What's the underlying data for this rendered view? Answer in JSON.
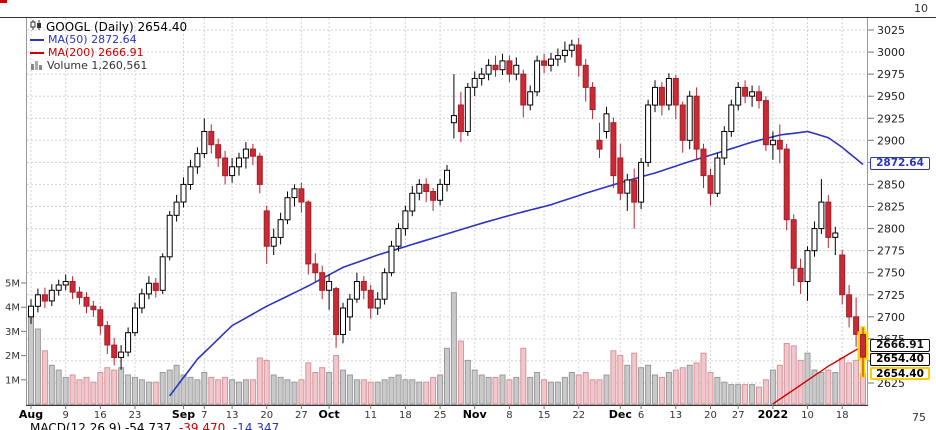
{
  "window": {
    "top_right_cutoff_label": "10",
    "bottom_right_cutoff_label": "75"
  },
  "legend": {
    "title": "GOOGL (Daily) 2654.40",
    "ma50_label": "MA(50) 2872.64",
    "ma200_label": "MA(200) 2666.91",
    "volume_label": "Volume 1,260,561"
  },
  "macd_legend": {
    "label": "MACD(12,26,9)",
    "v1": "-54.737,",
    "v2": "-39.470,",
    "v3": "-14.347"
  },
  "colors": {
    "up_candle_fill": "#ffffff",
    "up_candle_stroke": "#000000",
    "down_candle_fill": "#cc2936",
    "ma50_line": "#2b35c0",
    "ma200_line": "#cc0000",
    "volume_up": "#c9c9c9",
    "volume_down": "#f3c6cb",
    "selection_highlight": "#ffd400",
    "grid": "#d3d3d3"
  },
  "price_axis": {
    "ticks": [
      3025,
      3000,
      2975,
      2950,
      2925,
      2900,
      2875,
      2850,
      2825,
      2800,
      2775,
      2750,
      2725,
      2700,
      2675,
      2650,
      2625
    ]
  },
  "volume_axis": {
    "ticks": [
      {
        "label": "5M",
        "v": 5
      },
      {
        "label": "4M",
        "v": 4
      },
      {
        "label": "3M",
        "v": 3
      },
      {
        "label": "2M",
        "v": 2
      },
      {
        "label": "1M",
        "v": 1
      }
    ]
  },
  "x_axis": {
    "labels": [
      {
        "t": "Aug",
        "i": 0,
        "b": true
      },
      {
        "t": "9",
        "i": 5
      },
      {
        "t": "16",
        "i": 10
      },
      {
        "t": "23",
        "i": 15
      },
      {
        "t": "Sep",
        "i": 22,
        "b": true
      },
      {
        "t": "7",
        "i": 25
      },
      {
        "t": "13",
        "i": 29
      },
      {
        "t": "20",
        "i": 34
      },
      {
        "t": "27",
        "i": 39
      },
      {
        "t": "Oct",
        "i": 43,
        "b": true
      },
      {
        "t": "11",
        "i": 49
      },
      {
        "t": "18",
        "i": 54
      },
      {
        "t": "25",
        "i": 59
      },
      {
        "t": "Nov",
        "i": 64,
        "b": true
      },
      {
        "t": "8",
        "i": 69
      },
      {
        "t": "15",
        "i": 74
      },
      {
        "t": "22",
        "i": 79
      },
      {
        "t": "Dec",
        "i": 85,
        "b": true
      },
      {
        "t": "6",
        "i": 88
      },
      {
        "t": "13",
        "i": 93
      },
      {
        "t": "20",
        "i": 98
      },
      {
        "t": "27",
        "i": 102
      },
      {
        "t": "2022",
        "i": 107,
        "b": true
      },
      {
        "t": "10",
        "i": 112
      },
      {
        "t": "18",
        "i": 117
      }
    ]
  },
  "price_labels": [
    {
      "id": "ma50",
      "text": "2872.64",
      "value": 2872.64,
      "color": "#2b35c0"
    },
    {
      "id": "ma200",
      "text": "2666.91",
      "value": 2666.91,
      "color": "#111111"
    },
    {
      "id": "last",
      "text": "2654.40",
      "value": 2654.4,
      "color": "#000000",
      "bold": true
    },
    {
      "id": "selected",
      "text": "2654.40",
      "value": 2641,
      "color": "#000000",
      "bold": true,
      "border": "#ffcc00"
    }
  ],
  "chart_data": {
    "type": "candlestick",
    "title": "GOOGL (Daily)",
    "last_close": 2654.4,
    "ma50_value": 2872.64,
    "ma200_value": 2666.91,
    "last_volume": "1,260,561",
    "ylim": [
      2625,
      3025
    ],
    "volume_unit": "millions",
    "x_range": "Aug 2021 - Jan 2022",
    "candles_format": [
      "open",
      "high",
      "low",
      "close",
      "volume_millions"
    ],
    "candles": [
      [
        2700,
        2720,
        2692,
        2712,
        3.8
      ],
      [
        2712,
        2732,
        2705,
        2725,
        3.1
      ],
      [
        2725,
        2733,
        2710,
        2718,
        2.2
      ],
      [
        2718,
        2737,
        2712,
        2730,
        1.6
      ],
      [
        2730,
        2742,
        2724,
        2736,
        1.4
      ],
      [
        2736,
        2748,
        2730,
        2740,
        1.1
      ],
      [
        2740,
        2746,
        2720,
        2728,
        1.2
      ],
      [
        2728,
        2734,
        2714,
        2722,
        1.0
      ],
      [
        2722,
        2728,
        2704,
        2712,
        1.1
      ],
      [
        2712,
        2718,
        2700,
        2708,
        0.9
      ],
      [
        2708,
        2712,
        2680,
        2690,
        1.3
      ],
      [
        2690,
        2695,
        2658,
        2668,
        1.5
      ],
      [
        2668,
        2676,
        2645,
        2654,
        1.4
      ],
      [
        2654,
        2668,
        2640,
        2660,
        1.5
      ],
      [
        2660,
        2688,
        2655,
        2682,
        1.2
      ],
      [
        2682,
        2716,
        2678,
        2710,
        1.1
      ],
      [
        2710,
        2732,
        2704,
        2726,
        1.0
      ],
      [
        2726,
        2746,
        2720,
        2738,
        0.9
      ],
      [
        2738,
        2744,
        2722,
        2730,
        0.9
      ],
      [
        2730,
        2772,
        2726,
        2768,
        1.3
      ],
      [
        2768,
        2820,
        2764,
        2815,
        1.4
      ],
      [
        2815,
        2838,
        2808,
        2830,
        1.6
      ],
      [
        2830,
        2858,
        2824,
        2850,
        1.2
      ],
      [
        2850,
        2878,
        2844,
        2870,
        1.1
      ],
      [
        2870,
        2892,
        2862,
        2885,
        1.0
      ],
      [
        2885,
        2925,
        2880,
        2910,
        1.3
      ],
      [
        2910,
        2918,
        2885,
        2895,
        1.1
      ],
      [
        2895,
        2902,
        2870,
        2880,
        1.0
      ],
      [
        2880,
        2888,
        2850,
        2860,
        1.1
      ],
      [
        2860,
        2880,
        2852,
        2870,
        1.0
      ],
      [
        2870,
        2886,
        2860,
        2880,
        0.9
      ],
      [
        2880,
        2898,
        2868,
        2890,
        1.0
      ],
      [
        2890,
        2896,
        2872,
        2882,
        1.0
      ],
      [
        2882,
        2886,
        2840,
        2850,
        1.9
      ],
      [
        2820,
        2826,
        2760,
        2780,
        1.8
      ],
      [
        2780,
        2800,
        2770,
        2790,
        1.2
      ],
      [
        2790,
        2818,
        2782,
        2810,
        1.1
      ],
      [
        2810,
        2842,
        2805,
        2835,
        1.0
      ],
      [
        2835,
        2850,
        2825,
        2845,
        0.9
      ],
      [
        2845,
        2852,
        2818,
        2830,
        1.0
      ],
      [
        2830,
        2832,
        2748,
        2760,
        1.7
      ],
      [
        2760,
        2772,
        2740,
        2750,
        1.3
      ],
      [
        2750,
        2758,
        2720,
        2730,
        1.5
      ],
      [
        2730,
        2748,
        2708,
        2740,
        1.3
      ],
      [
        2732,
        2734,
        2665,
        2680,
        2.0
      ],
      [
        2680,
        2716,
        2670,
        2710,
        1.4
      ],
      [
        2700,
        2726,
        2684,
        2720,
        1.2
      ],
      [
        2720,
        2750,
        2716,
        2740,
        1.0
      ],
      [
        2740,
        2746,
        2720,
        2730,
        1.0
      ],
      [
        2730,
        2736,
        2698,
        2710,
        0.9
      ],
      [
        2710,
        2728,
        2702,
        2720,
        0.9
      ],
      [
        2720,
        2755,
        2714,
        2750,
        1.0
      ],
      [
        2750,
        2786,
        2746,
        2780,
        1.1
      ],
      [
        2780,
        2806,
        2774,
        2800,
        1.2
      ],
      [
        2800,
        2826,
        2792,
        2820,
        1.0
      ],
      [
        2820,
        2848,
        2814,
        2840,
        1.0
      ],
      [
        2840,
        2856,
        2832,
        2850,
        0.9
      ],
      [
        2850,
        2857,
        2830,
        2842,
        0.9
      ],
      [
        2842,
        2846,
        2820,
        2832,
        1.1
      ],
      [
        2832,
        2856,
        2826,
        2850,
        1.2
      ],
      [
        2850,
        2872,
        2842,
        2866,
        2.3
      ],
      [
        2920,
        2975,
        2902,
        2928,
        4.6
      ],
      [
        2940,
        2955,
        2898,
        2910,
        2.6
      ],
      [
        2910,
        2965,
        2905,
        2960,
        1.8
      ],
      [
        2960,
        2978,
        2950,
        2970,
        1.4
      ],
      [
        2970,
        2982,
        2962,
        2975,
        1.2
      ],
      [
        2975,
        2992,
        2968,
        2985,
        1.1
      ],
      [
        2985,
        2996,
        2972,
        2980,
        1.1
      ],
      [
        2980,
        2998,
        2974,
        2990,
        1.2
      ],
      [
        2990,
        2996,
        2966,
        2975,
        1.0
      ],
      [
        2975,
        2994,
        2968,
        2985,
        1.1
      ],
      [
        2975,
        2980,
        2926,
        2940,
        2.3
      ],
      [
        2940,
        2962,
        2934,
        2955,
        1.1
      ],
      [
        2955,
        2996,
        2950,
        2990,
        1.3
      ],
      [
        2990,
        2998,
        2976,
        2985,
        1.0
      ],
      [
        2985,
        2999,
        2978,
        2992,
        0.9
      ],
      [
        2992,
        3004,
        2984,
        2996,
        0.9
      ],
      [
        2996,
        3012,
        2988,
        3002,
        1.1
      ],
      [
        3002,
        3014,
        2994,
        3008,
        1.3
      ],
      [
        3008,
        3016,
        2972,
        2985,
        1.2
      ],
      [
        2985,
        2992,
        2944,
        2960,
        1.3
      ],
      [
        2960,
        2966,
        2924,
        2935,
        1.0
      ],
      [
        2900,
        2920,
        2880,
        2890,
        1.0
      ],
      [
        2910,
        2938,
        2902,
        2930,
        1.2
      ],
      [
        2920,
        2926,
        2846,
        2860,
        2.2
      ],
      [
        2880,
        2896,
        2832,
        2840,
        2.0
      ],
      [
        2840,
        2862,
        2820,
        2855,
        1.6
      ],
      [
        2855,
        2868,
        2800,
        2830,
        2.1
      ],
      [
        2830,
        2880,
        2822,
        2875,
        1.5
      ],
      [
        2875,
        2946,
        2870,
        2940,
        1.6
      ],
      [
        2940,
        2968,
        2932,
        2960,
        1.2
      ],
      [
        2960,
        2966,
        2928,
        2940,
        1.1
      ],
      [
        2940,
        2976,
        2934,
        2970,
        1.3
      ],
      [
        2970,
        2974,
        2924,
        2940,
        1.4
      ],
      [
        2940,
        2944,
        2886,
        2900,
        1.5
      ],
      [
        2900,
        2956,
        2890,
        2950,
        1.6
      ],
      [
        2950,
        2960,
        2878,
        2890,
        1.7
      ],
      [
        2890,
        2896,
        2846,
        2860,
        2.1
      ],
      [
        2860,
        2868,
        2826,
        2840,
        1.3
      ],
      [
        2840,
        2886,
        2836,
        2880,
        1.1
      ],
      [
        2880,
        2916,
        2872,
        2910,
        0.9
      ],
      [
        2910,
        2946,
        2904,
        2940,
        0.8
      ],
      [
        2940,
        2966,
        2934,
        2960,
        0.8
      ],
      [
        2960,
        2968,
        2942,
        2950,
        0.8
      ],
      [
        2950,
        2962,
        2938,
        2955,
        0.8
      ],
      [
        2955,
        2962,
        2936,
        2945,
        0.7
      ],
      [
        2945,
        2950,
        2888,
        2895,
        1.0
      ],
      [
        2895,
        2910,
        2878,
        2900,
        1.4
      ],
      [
        2900,
        2918,
        2874,
        2890,
        1.6
      ],
      [
        2890,
        2896,
        2798,
        2810,
        2.5
      ],
      [
        2810,
        2816,
        2735,
        2755,
        2.4
      ],
      [
        2755,
        2766,
        2726,
        2740,
        1.8
      ],
      [
        2740,
        2780,
        2718,
        2775,
        2.1
      ],
      [
        2775,
        2808,
        2768,
        2800,
        1.4
      ],
      [
        2800,
        2856,
        2794,
        2830,
        1.3
      ],
      [
        2830,
        2838,
        2778,
        2790,
        1.4
      ],
      [
        2790,
        2802,
        2770,
        2795,
        1.3
      ],
      [
        2770,
        2776,
        2714,
        2725,
        1.9
      ],
      [
        2725,
        2736,
        2688,
        2700,
        1.7
      ],
      [
        2700,
        2722,
        2666,
        2680,
        1.8
      ],
      [
        2680,
        2688,
        2632,
        2654.4,
        1.26
      ]
    ],
    "ma50_anchors": [
      [
        19,
        2600
      ],
      [
        24,
        2652
      ],
      [
        29,
        2690
      ],
      [
        34,
        2712
      ],
      [
        40,
        2735
      ],
      [
        45,
        2756
      ],
      [
        50,
        2770
      ],
      [
        55,
        2782
      ],
      [
        60,
        2794
      ],
      [
        65,
        2806
      ],
      [
        70,
        2817
      ],
      [
        75,
        2827
      ],
      [
        80,
        2840
      ],
      [
        85,
        2852
      ],
      [
        90,
        2863
      ],
      [
        95,
        2876
      ],
      [
        100,
        2888
      ],
      [
        104,
        2898
      ],
      [
        108,
        2906
      ],
      [
        112,
        2910
      ],
      [
        115,
        2903
      ],
      [
        117,
        2892
      ],
      [
        120,
        2872.64
      ]
    ],
    "ma200_anchors": [
      [
        106,
        2596
      ],
      [
        109,
        2612
      ],
      [
        112,
        2628
      ],
      [
        115,
        2644
      ],
      [
        118,
        2658
      ],
      [
        120,
        2666.91
      ]
    ]
  }
}
